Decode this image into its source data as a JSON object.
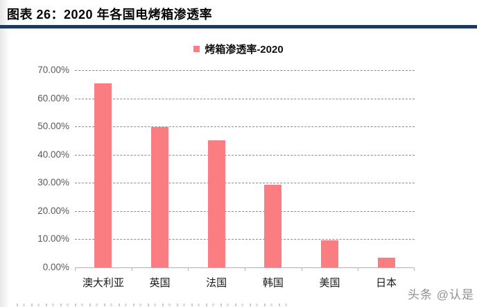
{
  "header": {
    "title": "图表 26：2020 年各国电烤箱渗透率",
    "rule_color": "#1e3a5e"
  },
  "chart_data": {
    "type": "bar",
    "title": "烤箱渗透率-2020",
    "legend": {
      "label": "烤箱渗透率-2020",
      "position": "top-center",
      "marker_color": "#fa7d82"
    },
    "categories": [
      "澳大利亚",
      "英国",
      "法国",
      "韩国",
      "美国",
      "日本"
    ],
    "values": [
      65.2,
      49.9,
      45.2,
      29.4,
      9.5,
      3.5
    ],
    "unit": "%",
    "ylim": [
      0,
      70
    ],
    "ytick_labels": [
      "0.00%",
      "10.00%",
      "20.00%",
      "30.00%",
      "40.00%",
      "50.00%",
      "60.00%",
      "70.00%"
    ],
    "grid": "horizontal-dashed",
    "bar_color": "#fa7d82",
    "axis_color": "#b3b3b3",
    "gridline_color": "#8a8a8a",
    "ytick_text_color": "#595959"
  },
  "watermark": {
    "text": "头条 @认是"
  }
}
